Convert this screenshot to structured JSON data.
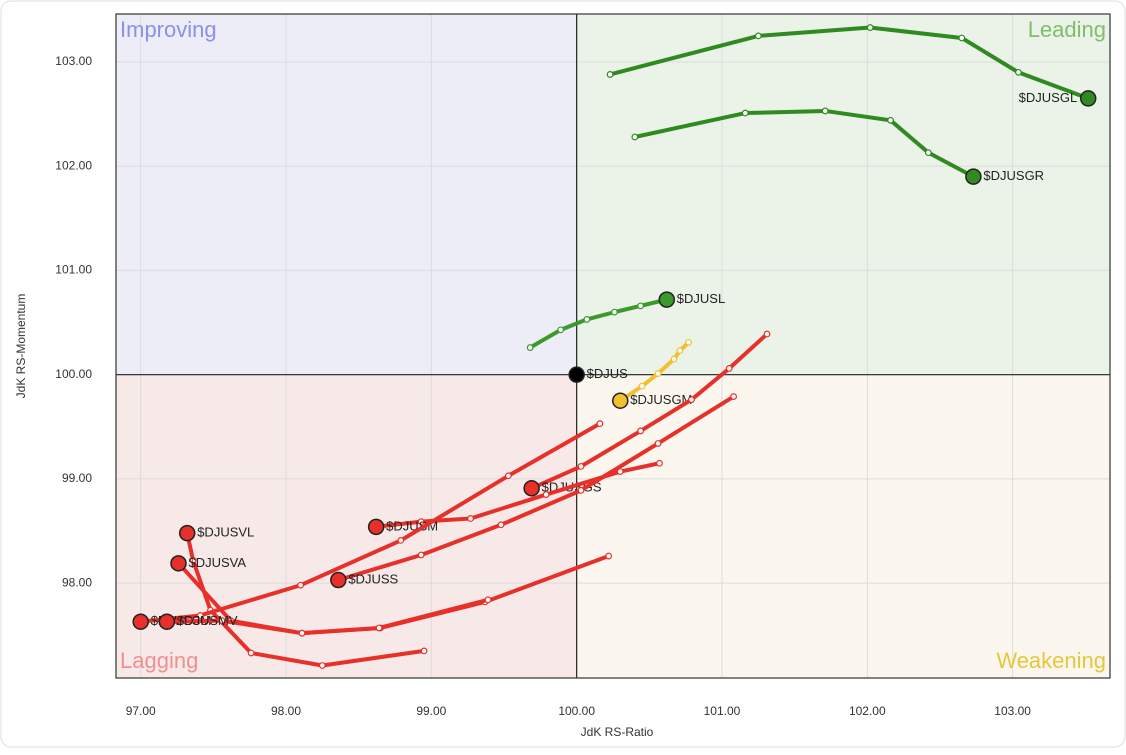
{
  "chart_data": {
    "type": "rrg",
    "xlabel": "JdK RS-Ratio",
    "ylabel": "JdK RS-Momentum",
    "xlim": [
      96.83,
      103.67
    ],
    "ylim": [
      97.09,
      103.46
    ],
    "xticks": [
      {
        "value": 97,
        "label": "97.00"
      },
      {
        "value": 98,
        "label": "98.00"
      },
      {
        "value": 99,
        "label": "99.00"
      },
      {
        "value": 100,
        "label": "100.00"
      },
      {
        "value": 101,
        "label": "101.00"
      },
      {
        "value": 102,
        "label": "102.00"
      },
      {
        "value": 103,
        "label": "103.00"
      }
    ],
    "yticks": [
      {
        "value": 98,
        "label": "98.00"
      },
      {
        "value": 99,
        "label": "99.00"
      },
      {
        "value": 100,
        "label": "100.00"
      },
      {
        "value": 101,
        "label": "101.00"
      },
      {
        "value": 102,
        "label": "102.00"
      },
      {
        "value": 103,
        "label": "103.00"
      }
    ],
    "grid": true,
    "center": {
      "x": 100,
      "y": 100
    },
    "quadrants": [
      {
        "name": "Improving",
        "corner": "top-left",
        "color": "#ededf7",
        "label_color": "#8c90e8"
      },
      {
        "name": "Leading",
        "corner": "top-right",
        "color": "#ebf2e8",
        "label_color": "#7fbf6c"
      },
      {
        "name": "Lagging",
        "corner": "bottom-left",
        "color": "#f7e9e7",
        "label_color": "#ef9090"
      },
      {
        "name": "Weakening",
        "corner": "bottom-right",
        "color": "#fbf7ef",
        "label_color": "#e8c63a"
      }
    ],
    "series": [
      {
        "name": "$DJUSGL",
        "color": "#2f8a1f",
        "x": [
          100.23,
          101.25,
          102.02,
          102.65,
          103.04,
          103.52
        ],
        "values": [
          102.88,
          103.25,
          103.33,
          103.23,
          102.9,
          102.65
        ]
      },
      {
        "name": "$DJUSGR",
        "color": "#2f8a1f",
        "x": [
          100.4,
          101.16,
          101.71,
          102.16,
          102.42,
          102.73
        ],
        "values": [
          102.28,
          102.51,
          102.53,
          102.44,
          102.13,
          101.9
        ]
      },
      {
        "name": "$DJUSL",
        "color": "#3a9a2a",
        "x": [
          99.68,
          99.89,
          100.07,
          100.26,
          100.44,
          100.62
        ],
        "values": [
          100.26,
          100.43,
          100.53,
          100.6,
          100.66,
          100.72
        ]
      },
      {
        "name": "$DJUS",
        "color": "#000000",
        "x": [
          100.0
        ],
        "values": [
          100.0
        ]
      },
      {
        "name": "$DJUSGM",
        "color": "#f0c030",
        "x": [
          100.77,
          100.71,
          100.67,
          100.56,
          100.45,
          100.3
        ],
        "values": [
          100.31,
          100.23,
          100.15,
          100.01,
          99.89,
          99.75
        ]
      },
      {
        "name": "$DJUSGS",
        "color": "#e8302a",
        "x": [
          101.31,
          101.05,
          100.79,
          100.44,
          100.03,
          99.69
        ],
        "values": [
          100.39,
          100.06,
          99.76,
          99.46,
          99.12,
          98.91
        ]
      },
      {
        "name": "$DJUSM",
        "color": "#e8302a",
        "x": [
          100.57,
          100.3,
          99.79,
          99.27,
          98.93,
          98.62
        ],
        "values": [
          99.15,
          99.07,
          98.85,
          98.62,
          98.59,
          98.54
        ]
      },
      {
        "name": "$DJUSS",
        "color": "#e8302a",
        "x": [
          101.08,
          100.56,
          100.03,
          99.48,
          98.93,
          98.36
        ],
        "values": [
          99.79,
          99.34,
          98.89,
          98.56,
          98.27,
          98.03
        ]
      },
      {
        "name": "$DJUSVL",
        "color": "#e8302a",
        "x": [
          98.95,
          98.25,
          97.76,
          97.48,
          97.36,
          97.32
        ],
        "values": [
          97.35,
          97.21,
          97.33,
          97.74,
          98.22,
          98.48
        ]
      },
      {
        "name": "$DJUSVA",
        "color": "#e8302a",
        "x": [
          100.22,
          99.37,
          98.65,
          98.11,
          97.62,
          97.26
        ],
        "values": [
          98.26,
          97.82,
          97.57,
          97.52,
          97.64,
          98.19
        ]
      },
      {
        "name": "$DJUSSM",
        "color": "#e8302a",
        "x": [
          100.16,
          99.53,
          98.79,
          98.1,
          97.41,
          97.0
        ],
        "values": [
          99.53,
          99.03,
          98.41,
          97.98,
          97.69,
          97.63
        ]
      },
      {
        "name": "$DJUSMV",
        "color": "#e8302a",
        "x": [
          99.39,
          98.64,
          98.11,
          97.56,
          97.18
        ],
        "values": [
          97.84,
          97.57,
          97.52,
          97.64,
          97.63
        ]
      }
    ]
  }
}
